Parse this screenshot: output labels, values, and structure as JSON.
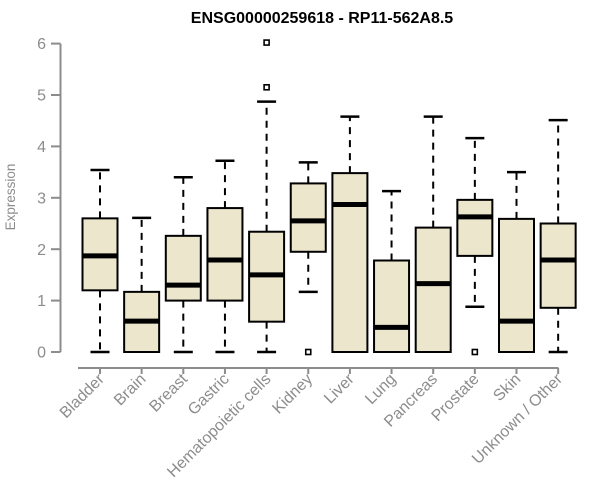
{
  "chart_data": {
    "type": "boxplot",
    "title": "ENSG00000259618 - RP11-562A8.5",
    "xlabel": "",
    "ylabel": "Expression",
    "ylim": [
      0,
      6
    ],
    "yticks": [
      0,
      1,
      2,
      3,
      4,
      5,
      6
    ],
    "grid": false,
    "legend": "none",
    "categories": [
      "Bladder",
      "Brain",
      "Breast",
      "Gastric",
      "Hematopoietic cells",
      "Kidney",
      "Liver",
      "Lung",
      "Pancreas",
      "Prostate",
      "Skin",
      "Unknown / Other"
    ],
    "series": [
      {
        "name": "Bladder",
        "whisker_low": 0,
        "q1": 1.2,
        "median": 1.87,
        "q3": 2.6,
        "whisker_high": 3.54,
        "outliers": []
      },
      {
        "name": "Brain",
        "whisker_low": 0,
        "q1": 0,
        "median": 0.6,
        "q3": 1.17,
        "whisker_high": 2.61,
        "outliers": []
      },
      {
        "name": "Breast",
        "whisker_low": 0,
        "q1": 1.0,
        "median": 1.3,
        "q3": 2.26,
        "whisker_high": 3.4,
        "outliers": []
      },
      {
        "name": "Gastric",
        "whisker_low": 0,
        "q1": 1.0,
        "median": 1.79,
        "q3": 2.8,
        "whisker_high": 3.72,
        "outliers": []
      },
      {
        "name": "Hematopoietic cells",
        "whisker_low": 0,
        "q1": 0.59,
        "median": 1.5,
        "q3": 2.34,
        "whisker_high": 4.87,
        "outliers": [
          5.15,
          6.02
        ]
      },
      {
        "name": "Kidney",
        "whisker_low": 1.17,
        "q1": 1.95,
        "median": 2.55,
        "q3": 3.28,
        "whisker_high": 3.69,
        "outliers": [
          0
        ]
      },
      {
        "name": "Liver",
        "whisker_low": 0,
        "q1": 0,
        "median": 2.87,
        "q3": 3.48,
        "whisker_high": 4.58,
        "outliers": []
      },
      {
        "name": "Lung",
        "whisker_low": 0,
        "q1": 0,
        "median": 0.48,
        "q3": 1.78,
        "whisker_high": 3.13,
        "outliers": []
      },
      {
        "name": "Pancreas",
        "whisker_low": 0,
        "q1": 0,
        "median": 1.33,
        "q3": 2.42,
        "whisker_high": 4.58,
        "outliers": []
      },
      {
        "name": "Prostate",
        "whisker_low": 0.88,
        "q1": 1.87,
        "median": 2.63,
        "q3": 2.96,
        "whisker_high": 4.16,
        "outliers": [
          0
        ]
      },
      {
        "name": "Skin",
        "whisker_low": 0,
        "q1": 0,
        "median": 0.6,
        "q3": 2.59,
        "whisker_high": 3.5,
        "outliers": []
      },
      {
        "name": "Unknown / Other",
        "whisker_low": 0,
        "q1": 0.86,
        "median": 1.79,
        "q3": 2.5,
        "whisker_high": 4.51,
        "outliers": []
      }
    ],
    "colors": {
      "box_fill": "#ECE7CC",
      "box_border": "#000000",
      "median": "#000000",
      "whisker": "#000000",
      "outlier": "#000000",
      "axis": "#8C8C8C",
      "label": "#8C8C8C",
      "title": "#000000",
      "background": "#FFFFFF"
    }
  }
}
